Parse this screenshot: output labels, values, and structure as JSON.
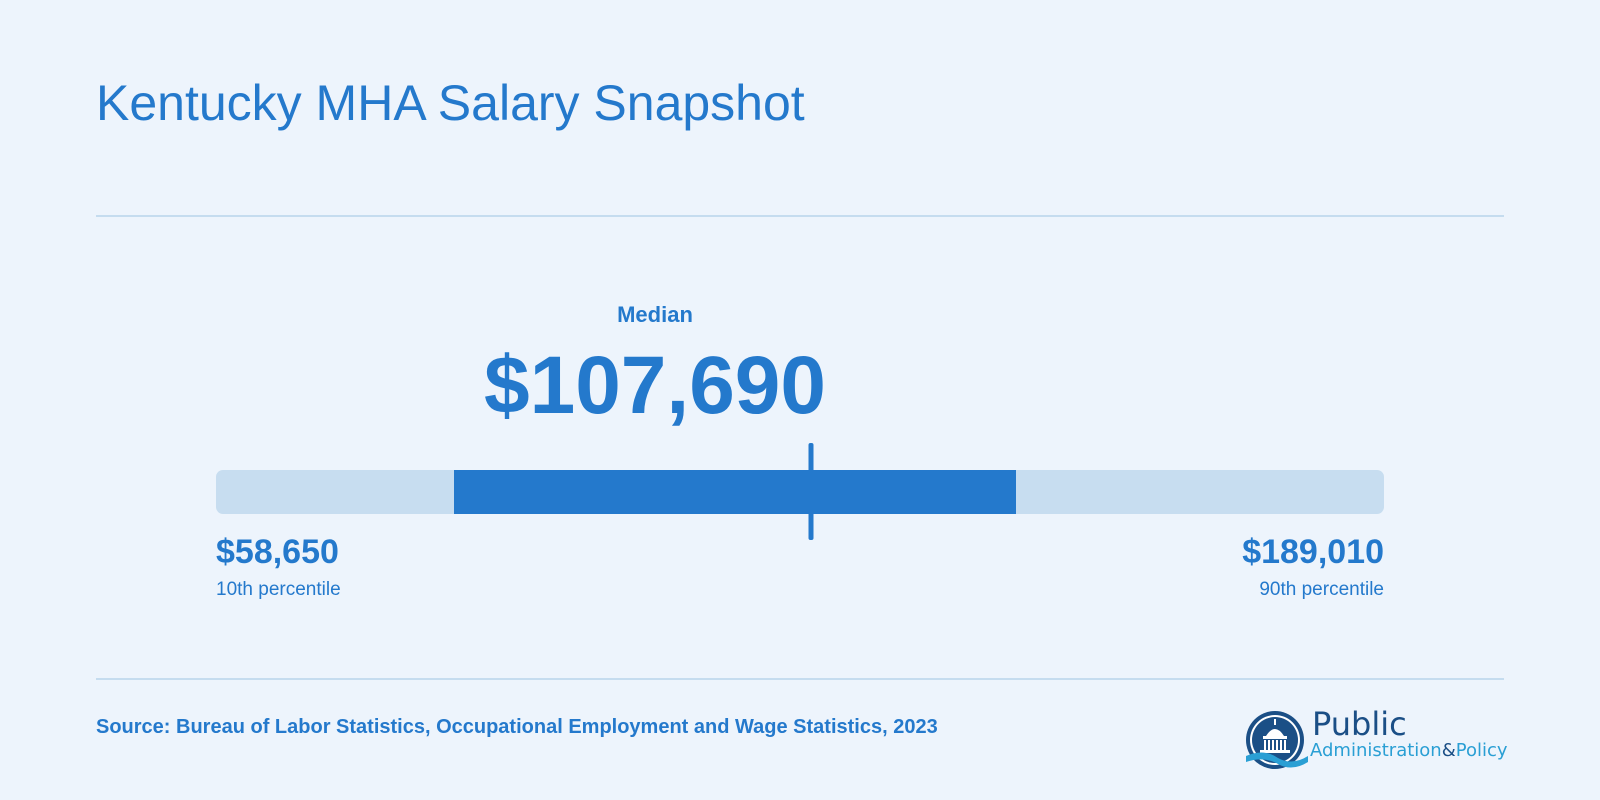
{
  "title": "Kentucky MHA Salary Snapshot",
  "chart_data": {
    "type": "range",
    "title": "Kentucky MHA Salary Snapshot",
    "median_label": "Median",
    "median_display": "$107,690",
    "median": 107690,
    "p10": 58650,
    "p10_display": "$58,650",
    "p10_label": "10th percentile",
    "p90": 189010,
    "p90_display": "$189,010",
    "p90_label": "90th percentile",
    "range_start": 58650,
    "range_end": 189010,
    "colors": {
      "range": "#2479cc",
      "track": "#c7ddf0",
      "text": "#2479cc"
    }
  },
  "source": "Source: Bureau of Labor Statistics, Occupational Employment and Wage Statistics, 2023",
  "logo": {
    "word1": "Public",
    "word2a": "Administration",
    "word2b": "&",
    "word2c": "Policy"
  }
}
